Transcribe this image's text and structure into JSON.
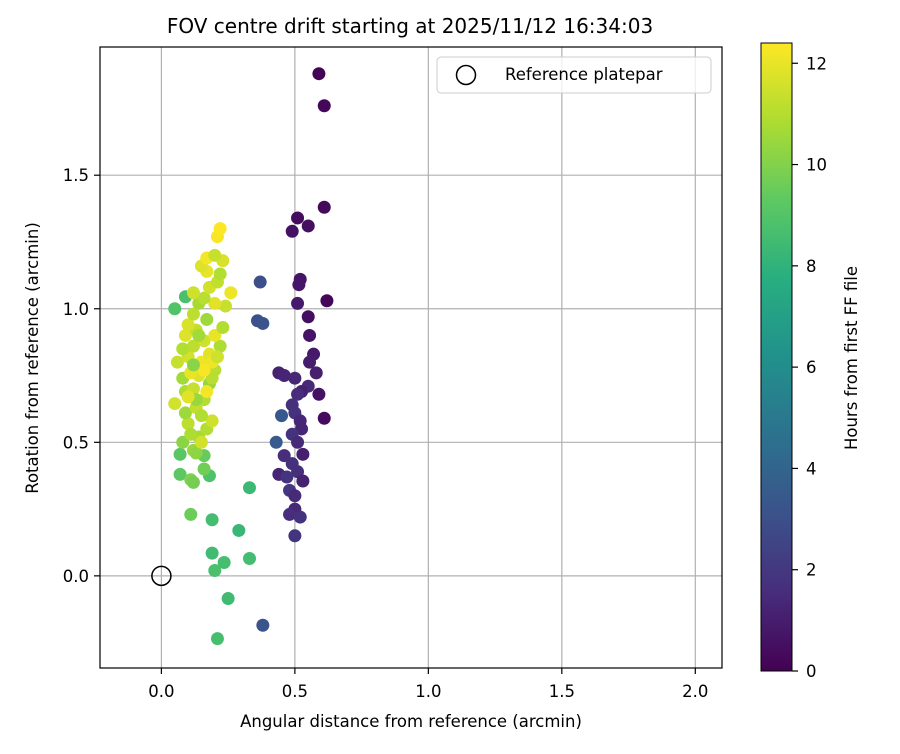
{
  "chart_data": {
    "type": "scatter",
    "title": "FOV centre drift starting at 2025/11/12 16:34:03",
    "xlabel": "Angular distance from reference (arcmin)",
    "ylabel": "Rotation from reference (arcmin)",
    "xlim": [
      -0.23,
      2.1
    ],
    "ylim": [
      -0.345,
      1.98
    ],
    "xticks": [
      0.0,
      0.5,
      1.0,
      1.5,
      2.0
    ],
    "xtick_labels": [
      "0.0",
      "0.5",
      "1.0",
      "1.5",
      "2.0"
    ],
    "yticks": [
      0.0,
      0.5,
      1.0,
      1.5
    ],
    "ytick_labels": [
      "0.0",
      "0.5",
      "1.0",
      "1.5"
    ],
    "grid": true,
    "colorbar": {
      "label": "Hours from first FF file",
      "range": [
        0,
        12.4
      ],
      "ticks": [
        0,
        2,
        4,
        6,
        8,
        10,
        12
      ],
      "tick_labels": [
        "0",
        "2",
        "4",
        "6",
        "8",
        "10",
        "12"
      ],
      "colormap": "viridis"
    },
    "legend": {
      "position": "top-right",
      "entries": [
        "Reference platepar"
      ]
    },
    "reference_point": {
      "x": 0.0,
      "y": 0.0
    },
    "points": [
      {
        "x": 0.59,
        "y": 1.88,
        "h": 0.1
      },
      {
        "x": 0.61,
        "y": 1.76,
        "h": 0.2
      },
      {
        "x": 0.61,
        "y": 1.38,
        "h": 0.3
      },
      {
        "x": 0.51,
        "y": 1.34,
        "h": 0.4
      },
      {
        "x": 0.55,
        "y": 1.31,
        "h": 0.5
      },
      {
        "x": 0.49,
        "y": 1.29,
        "h": 0.6
      },
      {
        "x": 0.52,
        "y": 1.11,
        "h": 0.7
      },
      {
        "x": 0.515,
        "y": 1.09,
        "h": 0.8
      },
      {
        "x": 0.51,
        "y": 1.02,
        "h": 0.9
      },
      {
        "x": 0.62,
        "y": 1.03,
        "h": 0.2
      },
      {
        "x": 0.55,
        "y": 0.97,
        "h": 0.5
      },
      {
        "x": 0.555,
        "y": 0.9,
        "h": 0.7
      },
      {
        "x": 0.57,
        "y": 0.83,
        "h": 0.9
      },
      {
        "x": 0.555,
        "y": 0.8,
        "h": 1.0
      },
      {
        "x": 0.58,
        "y": 0.76,
        "h": 1.1
      },
      {
        "x": 0.44,
        "y": 0.76,
        "h": 1.2
      },
      {
        "x": 0.46,
        "y": 0.75,
        "h": 1.3
      },
      {
        "x": 0.5,
        "y": 0.74,
        "h": 1.4
      },
      {
        "x": 0.55,
        "y": 0.71,
        "h": 1.5
      },
      {
        "x": 0.525,
        "y": 0.69,
        "h": 1.2
      },
      {
        "x": 0.59,
        "y": 0.68,
        "h": 0.6
      },
      {
        "x": 0.51,
        "y": 0.68,
        "h": 1.6
      },
      {
        "x": 0.49,
        "y": 0.64,
        "h": 1.7
      },
      {
        "x": 0.5,
        "y": 0.61,
        "h": 1.8
      },
      {
        "x": 0.52,
        "y": 0.58,
        "h": 1.4
      },
      {
        "x": 0.61,
        "y": 0.59,
        "h": 0.4
      },
      {
        "x": 0.525,
        "y": 0.55,
        "h": 1.3
      },
      {
        "x": 0.49,
        "y": 0.53,
        "h": 1.9
      },
      {
        "x": 0.51,
        "y": 0.5,
        "h": 1.5
      },
      {
        "x": 0.46,
        "y": 0.45,
        "h": 1.6
      },
      {
        "x": 0.53,
        "y": 0.455,
        "h": 1.1
      },
      {
        "x": 0.49,
        "y": 0.42,
        "h": 1.8
      },
      {
        "x": 0.51,
        "y": 0.39,
        "h": 1.7
      },
      {
        "x": 0.44,
        "y": 0.38,
        "h": 1.3
      },
      {
        "x": 0.47,
        "y": 0.37,
        "h": 1.9
      },
      {
        "x": 0.53,
        "y": 0.355,
        "h": 1.2
      },
      {
        "x": 0.48,
        "y": 0.32,
        "h": 2.0
      },
      {
        "x": 0.5,
        "y": 0.3,
        "h": 1.5
      },
      {
        "x": 0.5,
        "y": 0.25,
        "h": 1.4
      },
      {
        "x": 0.48,
        "y": 0.23,
        "h": 1.6
      },
      {
        "x": 0.52,
        "y": 0.22,
        "h": 1.8
      },
      {
        "x": 0.5,
        "y": 0.15,
        "h": 1.9
      },
      {
        "x": 0.37,
        "y": 1.1,
        "h": 3.0
      },
      {
        "x": 0.36,
        "y": 0.955,
        "h": 3.1
      },
      {
        "x": 0.38,
        "y": 0.945,
        "h": 3.2
      },
      {
        "x": 0.45,
        "y": 0.6,
        "h": 3.4
      },
      {
        "x": 0.43,
        "y": 0.5,
        "h": 3.6
      },
      {
        "x": 0.38,
        "y": -0.185,
        "h": 3.3
      },
      {
        "x": 0.05,
        "y": 1.0,
        "h": 9.0
      },
      {
        "x": 0.09,
        "y": 1.045,
        "h": 8.8
      },
      {
        "x": 0.19,
        "y": 0.21,
        "h": 8.6
      },
      {
        "x": 0.11,
        "y": 0.23,
        "h": 9.6
      },
      {
        "x": 0.07,
        "y": 0.38,
        "h": 9.3
      },
      {
        "x": 0.18,
        "y": 0.375,
        "h": 8.9
      },
      {
        "x": 0.33,
        "y": 0.33,
        "h": 8.4
      },
      {
        "x": 0.29,
        "y": 0.17,
        "h": 8.3
      },
      {
        "x": 0.19,
        "y": 0.085,
        "h": 8.5
      },
      {
        "x": 0.33,
        "y": 0.065,
        "h": 8.6
      },
      {
        "x": 0.235,
        "y": 0.05,
        "h": 8.7
      },
      {
        "x": 0.2,
        "y": 0.02,
        "h": 8.8
      },
      {
        "x": 0.25,
        "y": -0.085,
        "h": 8.5
      },
      {
        "x": 0.21,
        "y": -0.235,
        "h": 8.7
      },
      {
        "x": 0.07,
        "y": 0.455,
        "h": 9.2
      },
      {
        "x": 0.16,
        "y": 0.45,
        "h": 9.5
      },
      {
        "x": 0.16,
        "y": 0.4,
        "h": 9.7
      },
      {
        "x": 0.11,
        "y": 0.36,
        "h": 10.0
      },
      {
        "x": 0.12,
        "y": 0.35,
        "h": 9.8
      },
      {
        "x": 0.08,
        "y": 0.5,
        "h": 10.2
      },
      {
        "x": 0.12,
        "y": 0.47,
        "h": 10.5
      },
      {
        "x": 0.14,
        "y": 0.52,
        "h": 10.8
      },
      {
        "x": 0.17,
        "y": 0.55,
        "h": 11.0
      },
      {
        "x": 0.1,
        "y": 0.57,
        "h": 11.2
      },
      {
        "x": 0.19,
        "y": 0.58,
        "h": 11.5
      },
      {
        "x": 0.09,
        "y": 0.61,
        "h": 10.6
      },
      {
        "x": 0.13,
        "y": 0.63,
        "h": 11.3
      },
      {
        "x": 0.05,
        "y": 0.645,
        "h": 11.6
      },
      {
        "x": 0.16,
        "y": 0.66,
        "h": 11.0
      },
      {
        "x": 0.09,
        "y": 0.69,
        "h": 10.9
      },
      {
        "x": 0.12,
        "y": 0.7,
        "h": 11.4
      },
      {
        "x": 0.18,
        "y": 0.72,
        "h": 10.4
      },
      {
        "x": 0.08,
        "y": 0.74,
        "h": 10.7
      },
      {
        "x": 0.14,
        "y": 0.75,
        "h": 11.8
      },
      {
        "x": 0.11,
        "y": 0.76,
        "h": 12.0
      },
      {
        "x": 0.2,
        "y": 0.77,
        "h": 11.1
      },
      {
        "x": 0.06,
        "y": 0.8,
        "h": 11.4
      },
      {
        "x": 0.15,
        "y": 0.8,
        "h": 12.1
      },
      {
        "x": 0.1,
        "y": 0.82,
        "h": 11.6
      },
      {
        "x": 0.18,
        "y": 0.83,
        "h": 11.9
      },
      {
        "x": 0.22,
        "y": 0.86,
        "h": 10.9
      },
      {
        "x": 0.12,
        "y": 0.86,
        "h": 11.2
      },
      {
        "x": 0.16,
        "y": 0.88,
        "h": 11.5
      },
      {
        "x": 0.09,
        "y": 0.9,
        "h": 11.8
      },
      {
        "x": 0.2,
        "y": 0.9,
        "h": 12.0
      },
      {
        "x": 0.13,
        "y": 0.92,
        "h": 11.3
      },
      {
        "x": 0.23,
        "y": 0.93,
        "h": 11.0
      },
      {
        "x": 0.1,
        "y": 0.94,
        "h": 11.7
      },
      {
        "x": 0.17,
        "y": 0.96,
        "h": 10.6
      },
      {
        "x": 0.12,
        "y": 0.98,
        "h": 11.2
      },
      {
        "x": 0.24,
        "y": 1.01,
        "h": 11.4
      },
      {
        "x": 0.14,
        "y": 1.02,
        "h": 10.8
      },
      {
        "x": 0.2,
        "y": 1.02,
        "h": 11.9
      },
      {
        "x": 0.16,
        "y": 1.04,
        "h": 11.1
      },
      {
        "x": 0.12,
        "y": 1.06,
        "h": 11.5
      },
      {
        "x": 0.26,
        "y": 1.06,
        "h": 12.1
      },
      {
        "x": 0.18,
        "y": 1.08,
        "h": 11.6
      },
      {
        "x": 0.21,
        "y": 1.1,
        "h": 11.3
      },
      {
        "x": 0.22,
        "y": 1.13,
        "h": 11.0
      },
      {
        "x": 0.17,
        "y": 1.14,
        "h": 12.0
      },
      {
        "x": 0.15,
        "y": 1.16,
        "h": 11.8
      },
      {
        "x": 0.23,
        "y": 1.18,
        "h": 11.7
      },
      {
        "x": 0.17,
        "y": 1.19,
        "h": 12.2
      },
      {
        "x": 0.2,
        "y": 1.2,
        "h": 11.4
      },
      {
        "x": 0.21,
        "y": 1.27,
        "h": 12.3
      },
      {
        "x": 0.22,
        "y": 1.3,
        "h": 12.4
      },
      {
        "x": 0.19,
        "y": 0.74,
        "h": 11.1
      },
      {
        "x": 0.13,
        "y": 0.66,
        "h": 10.5
      },
      {
        "x": 0.15,
        "y": 0.6,
        "h": 11.0
      },
      {
        "x": 0.1,
        "y": 0.67,
        "h": 11.9
      },
      {
        "x": 0.17,
        "y": 0.69,
        "h": 12.2
      },
      {
        "x": 0.11,
        "y": 0.53,
        "h": 10.9
      },
      {
        "x": 0.13,
        "y": 0.46,
        "h": 10.3
      },
      {
        "x": 0.15,
        "y": 0.5,
        "h": 11.6
      },
      {
        "x": 0.19,
        "y": 0.8,
        "h": 12.1
      },
      {
        "x": 0.08,
        "y": 0.85,
        "h": 11.0
      },
      {
        "x": 0.14,
        "y": 0.9,
        "h": 10.7
      },
      {
        "x": 0.16,
        "y": 0.77,
        "h": 12.3
      },
      {
        "x": 0.21,
        "y": 0.82,
        "h": 11.5
      },
      {
        "x": 0.12,
        "y": 0.79,
        "h": 10.2
      }
    ]
  }
}
